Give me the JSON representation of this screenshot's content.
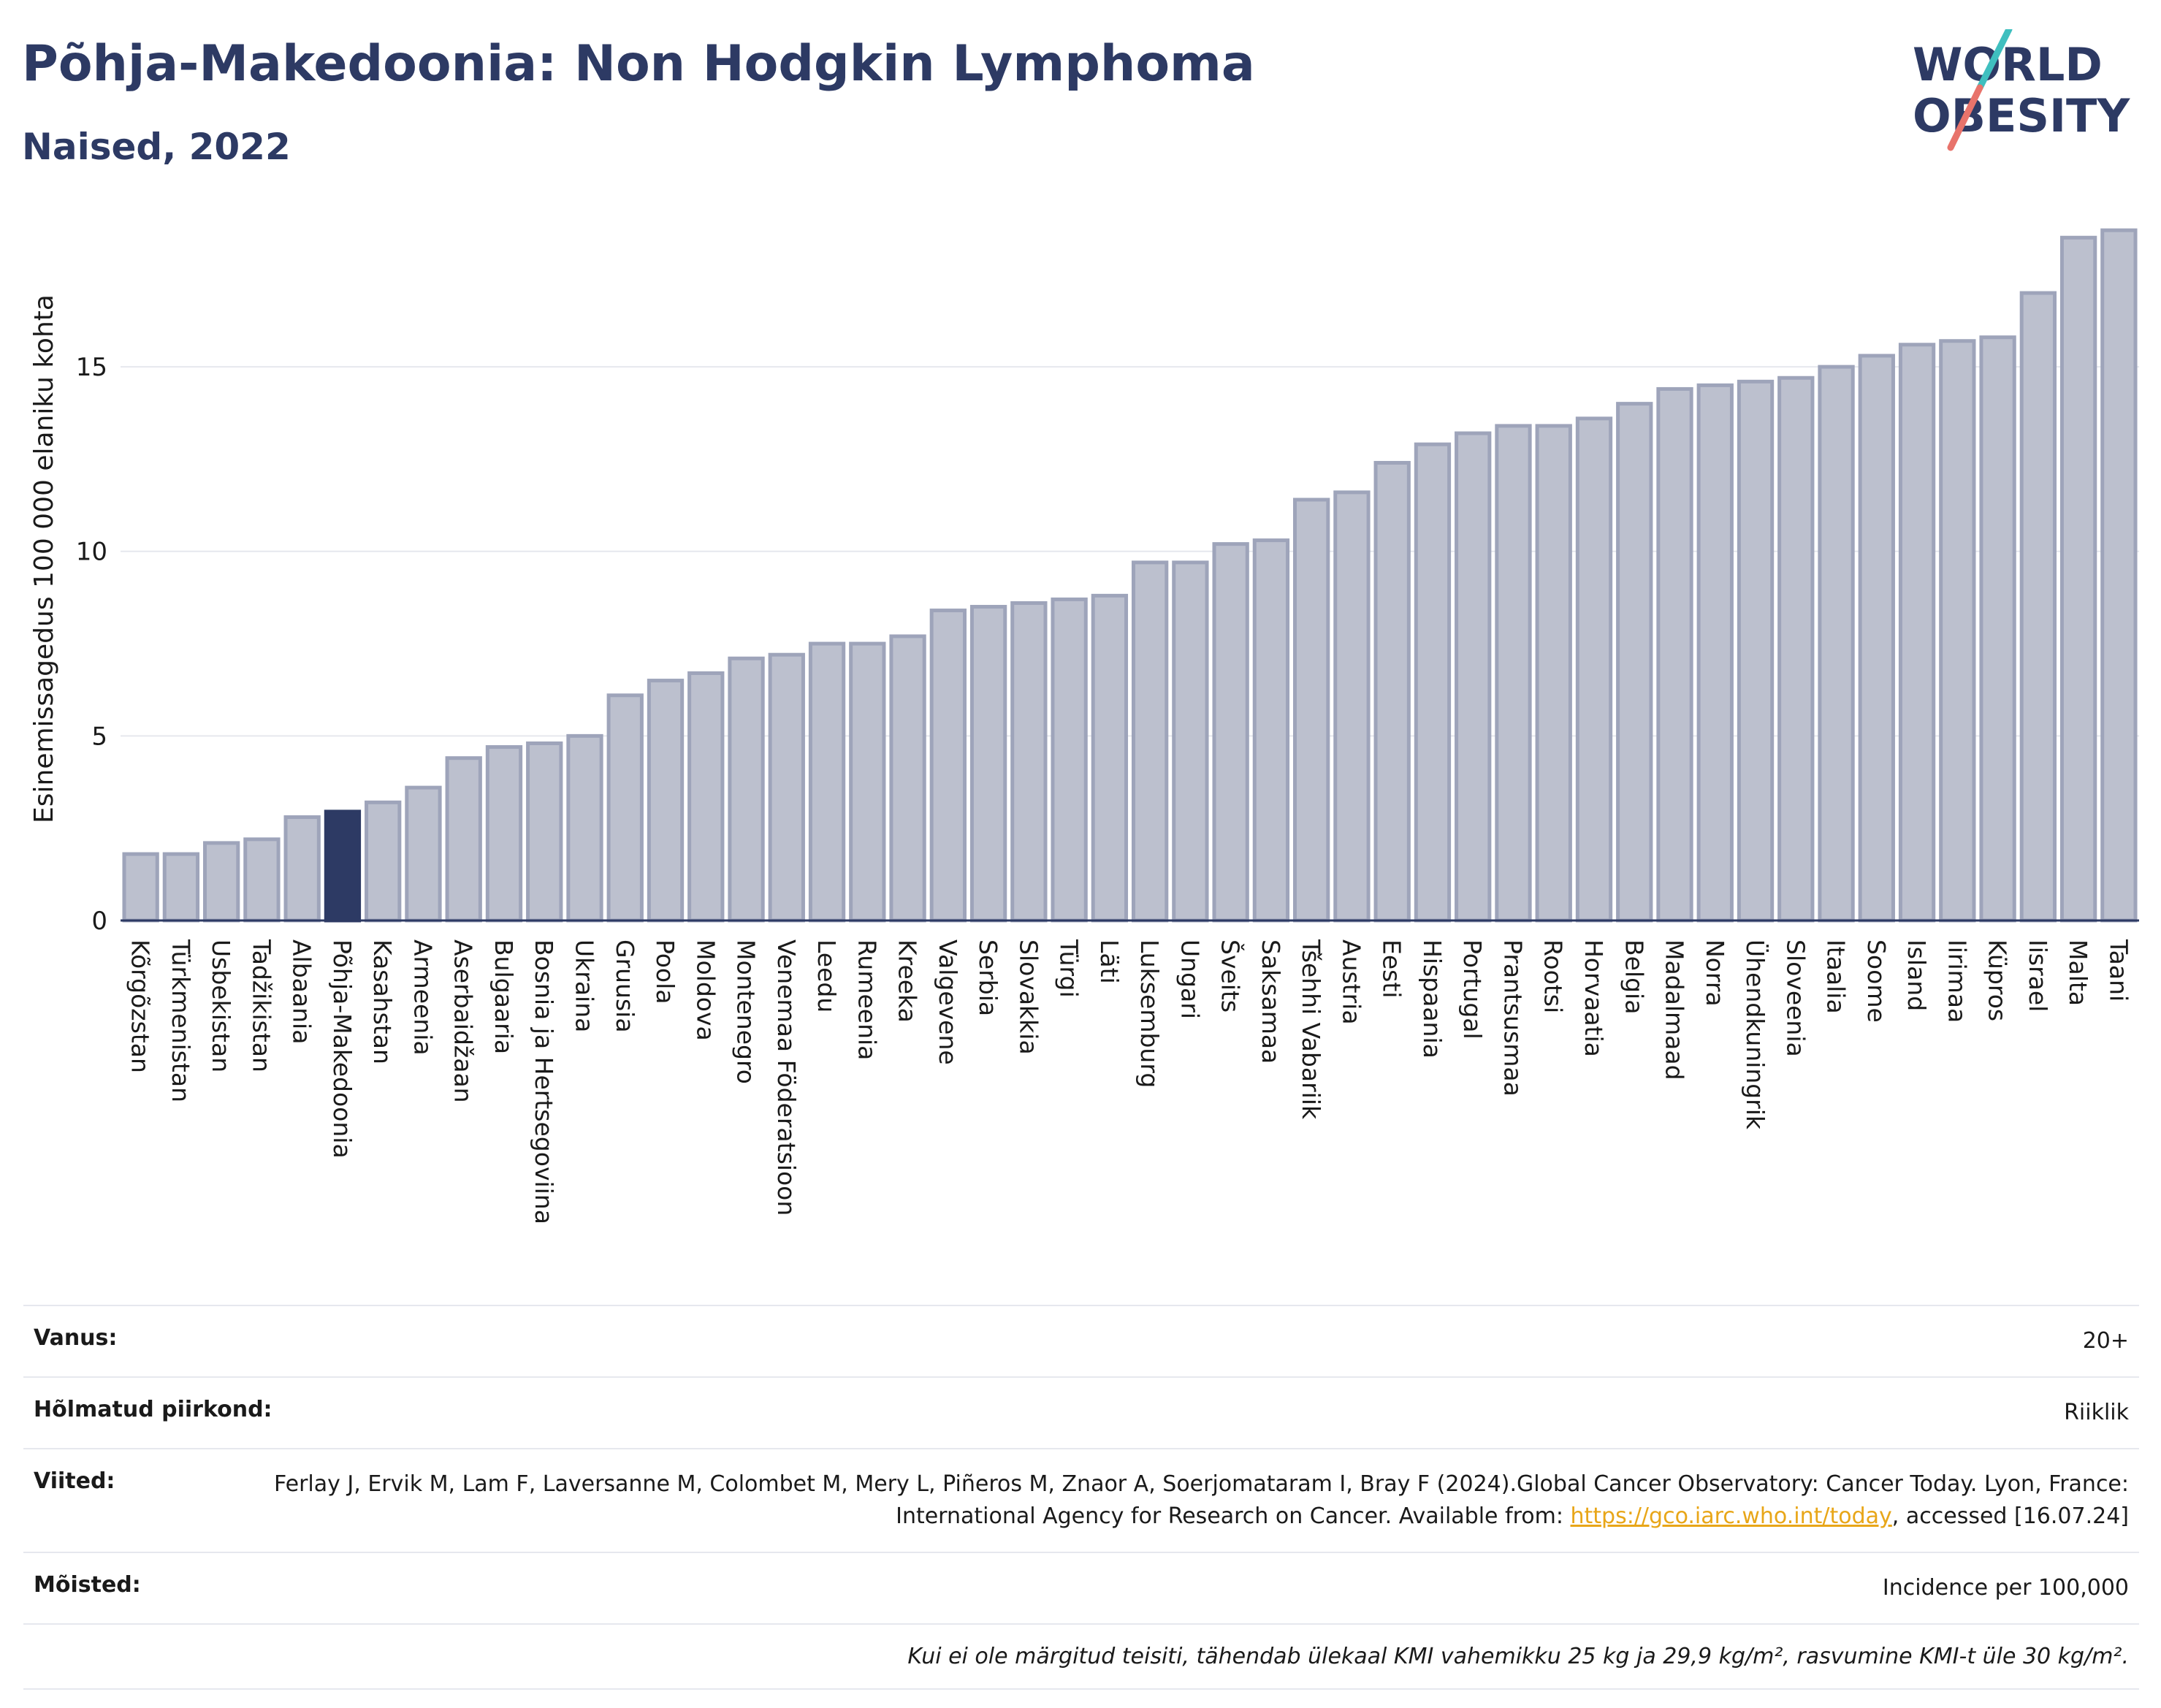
{
  "header": {
    "title": "Põhja-Makedoonia: Non Hodgkin Lymphoma",
    "subtitle": "Naised, 2022"
  },
  "logo": {
    "line1": "WORLD",
    "line2": "OBESITY",
    "stroke_colors": [
      "#3fbfbf",
      "#e8736b"
    ],
    "text_color": "#2d3a64"
  },
  "chart_data": {
    "type": "bar",
    "title": "Põhja-Makedoonia: Non Hodgkin Lymphoma",
    "subtitle": "Naised, 2022",
    "ylabel": "Esinemissagedus 100 000 elaniku kohta",
    "xlabel": "",
    "ylim": [
      0,
      19
    ],
    "yticks": [
      0,
      5,
      10,
      15
    ],
    "grid": true,
    "highlight": "Põhja-Makedoonia",
    "colors": {
      "bar": "#bcc0ce",
      "bar_edge": "#9ea4ba",
      "highlight": "#2d3a64",
      "axis": "#2d3a64",
      "grid": "#e6e8ee"
    },
    "categories": [
      "Kõrgõzstan",
      "Türkmenistan",
      "Usbekistan",
      "Tadžikistan",
      "Albaania",
      "Põhja-Makedoonia",
      "Kasahstan",
      "Armeenia",
      "Aserbaidžaan",
      "Bulgaaria",
      "Bosnia ja Hertsegoviina",
      "Ukraina",
      "Gruusia",
      "Poola",
      "Moldova",
      "Montenegro",
      "Venemaa Föderatsioon",
      "Leedu",
      "Rumeenia",
      "Kreeka",
      "Valgevene",
      "Serbia",
      "Slovakkia",
      "Türgi",
      "Läti",
      "Luksemburg",
      "Ungari",
      "Šveits",
      "Saksamaa",
      "Tšehhi Vabariik",
      "Austria",
      "Eesti",
      "Hispaania",
      "Portugal",
      "Prantsusmaa",
      "Rootsi",
      "Horvaatia",
      "Belgia",
      "Madalmaad",
      "Norra",
      "Ühendkuningrik",
      "Sloveenia",
      "Itaalia",
      "Soome",
      "Island",
      "Iirimaa",
      "Küpros",
      "Iisrael",
      "Malta",
      "Taani"
    ],
    "values": [
      1.8,
      1.8,
      2.1,
      2.2,
      2.8,
      2.95,
      3.2,
      3.6,
      4.4,
      4.7,
      4.8,
      5.0,
      6.1,
      6.5,
      6.7,
      7.1,
      7.2,
      7.5,
      7.5,
      7.7,
      8.4,
      8.5,
      8.6,
      8.7,
      8.8,
      9.7,
      9.7,
      10.2,
      10.3,
      11.4,
      11.6,
      12.4,
      12.9,
      13.2,
      13.4,
      13.4,
      13.6,
      14.0,
      14.4,
      14.5,
      14.6,
      14.7,
      15.0,
      15.3,
      15.6,
      15.7,
      15.8,
      17.0,
      18.5,
      18.7
    ]
  },
  "meta": {
    "age": {
      "label": "Vanus:",
      "value": "20+"
    },
    "regions": {
      "label": "Hõlmatud piirkond:",
      "value": "Riiklik"
    },
    "references": {
      "label": "Viited:",
      "text_1": "Ferlay J, Ervik M, Lam F, Laversanne M, Colombet M, Mery L, Piñeros M, Znaor A, Soerjomataram I, Bray F (2024).Global Cancer Observatory: Cancer Today. Lyon, France: International Agency for Research on Cancer. Available from: ",
      "link": "https://gco.iarc.who.int/today",
      "text_2": ", accessed [16.07.24]"
    },
    "definitions": {
      "label": "Mõisted:",
      "value": "Incidence per 100,000"
    },
    "note": "Kui ei ole märgitud teisiti, tähendab ülekaal KMI vahemikku 25 kg ja 29,9 kg/m², rasvumine KMI-t üle 30 kg/m²."
  }
}
